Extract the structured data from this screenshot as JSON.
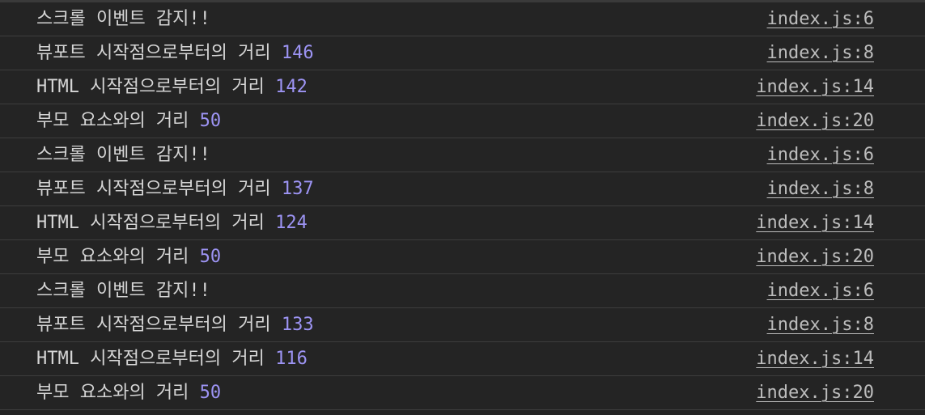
{
  "console": {
    "rows": [
      {
        "text": "스크롤 이벤트 감지!!",
        "value": "",
        "source": "index.js:6"
      },
      {
        "text": "뷰포트 시작점으로부터의 거리 ",
        "value": "146",
        "source": "index.js:8"
      },
      {
        "text": "HTML 시작점으로부터의 거리 ",
        "value": "142",
        "source": "index.js:14"
      },
      {
        "text": "부모 요소와의 거리 ",
        "value": "50",
        "source": "index.js:20"
      },
      {
        "text": "스크롤 이벤트 감지!!",
        "value": "",
        "source": "index.js:6"
      },
      {
        "text": "뷰포트 시작점으로부터의 거리 ",
        "value": "137",
        "source": "index.js:8"
      },
      {
        "text": "HTML 시작점으로부터의 거리 ",
        "value": "124",
        "source": "index.js:14"
      },
      {
        "text": "부모 요소와의 거리 ",
        "value": "50",
        "source": "index.js:20"
      },
      {
        "text": "스크롤 이벤트 감지!!",
        "value": "",
        "source": "index.js:6"
      },
      {
        "text": "뷰포트 시작점으로부터의 거리 ",
        "value": "133",
        "source": "index.js:8"
      },
      {
        "text": "HTML 시작점으로부터의 거리 ",
        "value": "116",
        "source": "index.js:14"
      },
      {
        "text": "부모 요소와의 거리 ",
        "value": "50",
        "source": "index.js:20"
      }
    ]
  },
  "colors": {
    "background": "#242424",
    "text": "#d5d5d5",
    "number": "#9d94f4",
    "link": "#bdbdbd",
    "divider": "#3d3d3d"
  }
}
